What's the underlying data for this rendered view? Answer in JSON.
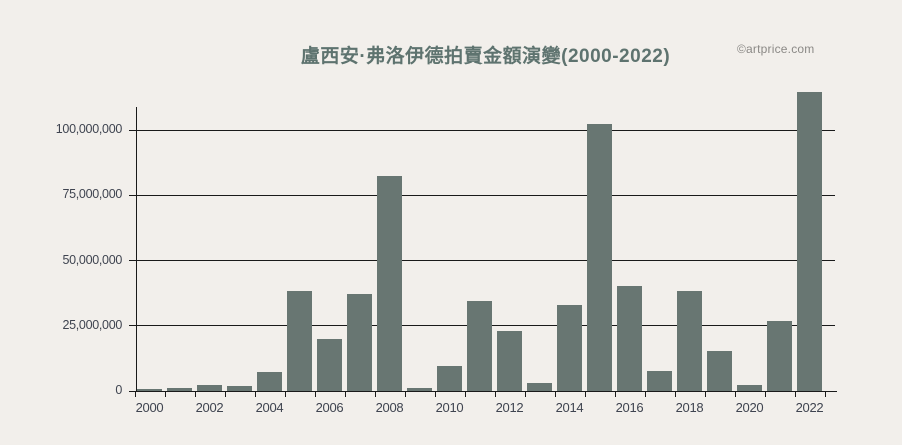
{
  "page": {
    "background": "#f2efeb"
  },
  "header": {
    "title": "盧西安·弗洛伊德拍賣金額演變(2000-2022)",
    "watermark": "©artprice.com"
  },
  "chart_data": {
    "type": "bar",
    "title": "盧西安·弗洛伊德拍賣金額演變(2000-2022)",
    "categories": [
      2000,
      2001,
      2002,
      2003,
      2004,
      2005,
      2006,
      2007,
      2008,
      2009,
      2010,
      2011,
      2012,
      2013,
      2014,
      2015,
      2016,
      2017,
      2018,
      2019,
      2020,
      2021,
      2022
    ],
    "values": [
      800000,
      1200000,
      2200000,
      1800000,
      7300000,
      38200000,
      20000000,
      37300000,
      82300000,
      1200000,
      9600000,
      34600000,
      23100000,
      3100000,
      33100000,
      102300000,
      40100000,
      7800000,
      38500000,
      15500000,
      2300000,
      27000000,
      114600000
    ],
    "xlabel": "",
    "ylabel": "",
    "ylim": [
      0,
      117000000
    ],
    "ytick_values": [
      0,
      25000000,
      50000000,
      75000000,
      100000000
    ],
    "ytick_labels": [
      "0",
      "25,000,000",
      "50,000,000",
      "75,000,000",
      "100,000,000"
    ],
    "xtick_label_years": [
      "2000",
      "2002",
      "2004",
      "2006",
      "2008",
      "2010",
      "2012",
      "2014",
      "2016",
      "2018",
      "2020",
      "2022"
    ],
    "grid": "horizontal",
    "legend": "none",
    "colors": {
      "background": "#f2efeb",
      "bar": "#687672",
      "axis_line": "#1a1a1a",
      "tick_text": "#3f4450",
      "title_text": "#5e736f",
      "watermark_text": "#8b8986"
    }
  }
}
